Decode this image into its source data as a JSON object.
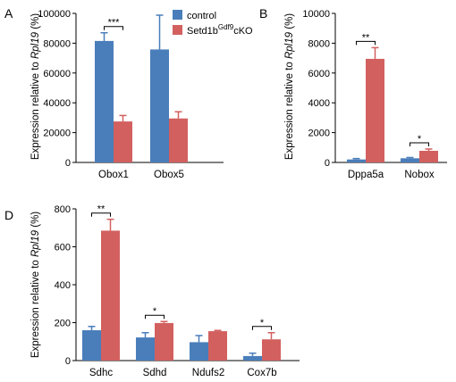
{
  "legend": {
    "control_label": "control",
    "cko_prefix": "Setd1b",
    "cko_superscript": "Gdf9",
    "cko_suffix": "cKO"
  },
  "colors": {
    "control": "#4a7eba",
    "cko": "#d2605f"
  },
  "chart_data": [
    {
      "type": "bar",
      "panel": "A",
      "ylabel_prefix": "Expression relative to ",
      "ylabel_gene": "Rpl19",
      "ylabel_suffix": " (%)",
      "ylim": [
        0,
        100000
      ],
      "yticks": [
        "0",
        "20000",
        "40000",
        "60000",
        "80000",
        "100000"
      ],
      "categories": [
        "Obox1",
        "Obox5"
      ],
      "series": [
        {
          "name": "control",
          "values": [
            81500,
            75800
          ],
          "errors": [
            5500,
            23000
          ]
        },
        {
          "name": "Setd1bGdf9cKO",
          "values": [
            27500,
            29500
          ],
          "errors": [
            4000,
            4500
          ]
        }
      ],
      "significance": [
        {
          "category": "Obox1",
          "label": "***"
        }
      ]
    },
    {
      "type": "bar",
      "panel": "B",
      "ylabel_prefix": "Expression relative to ",
      "ylabel_gene": "Rpl19",
      "ylabel_suffix": " (%)",
      "ylim": [
        0,
        10000
      ],
      "yticks": [
        "0",
        "2000",
        "4000",
        "6000",
        "8000",
        "10000"
      ],
      "categories": [
        "Dppa5a",
        "Nobox"
      ],
      "series": [
        {
          "name": "control",
          "values": [
            200,
            280
          ],
          "errors": [
            60,
            50
          ]
        },
        {
          "name": "Setd1bGdf9cKO",
          "values": [
            6950,
            780
          ],
          "errors": [
            750,
            120
          ]
        }
      ],
      "significance": [
        {
          "category": "Dppa5a",
          "label": "**"
        },
        {
          "category": "Nobox",
          "label": "*"
        }
      ]
    },
    {
      "type": "bar",
      "panel": "D",
      "ylabel_prefix": "Expression relative to ",
      "ylabel_gene": "Rpl19",
      "ylabel_suffix": " (%)",
      "ylim": [
        0,
        800
      ],
      "yticks": [
        "0",
        "200",
        "400",
        "600",
        "800"
      ],
      "categories": [
        "Sdhc",
        "Sdhd",
        "Ndufs2",
        "Cox7b"
      ],
      "series": [
        {
          "name": "control",
          "values": [
            160,
            122,
            97,
            24
          ],
          "errors": [
            20,
            25,
            35,
            15
          ]
        },
        {
          "name": "Setd1bGdf9cKO",
          "values": [
            685,
            198,
            155,
            112
          ],
          "errors": [
            60,
            8,
            4,
            35
          ]
        }
      ],
      "significance": [
        {
          "category": "Sdhc",
          "label": "**"
        },
        {
          "category": "Sdhd",
          "label": "*"
        },
        {
          "category": "Cox7b",
          "label": "*"
        }
      ]
    }
  ]
}
